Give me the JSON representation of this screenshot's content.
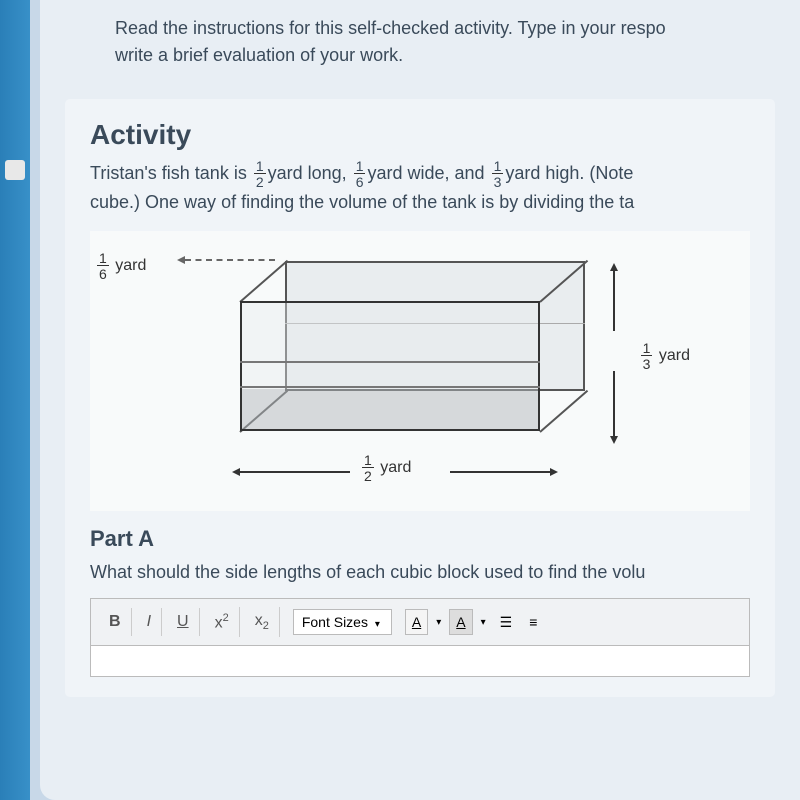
{
  "instructions": {
    "line1": "Read the instructions for this self-checked activity. Type in your respo",
    "line2": "write a brief evaluation of your work."
  },
  "activity": {
    "title": "Activity",
    "text_part1": "Tristan's fish tank is ",
    "frac1_num": "1",
    "frac1_den": "2",
    "text_part2": "yard long, ",
    "frac2_num": "1",
    "frac2_den": "6",
    "text_part3": "yard wide, and ",
    "frac3_num": "1",
    "frac3_den": "3",
    "text_part4": "yard high. (Note",
    "text_line2": "cube.) One way of finding the volume of the tank is by dividing the ta"
  },
  "diagram": {
    "width_frac_num": "1",
    "width_frac_den": "6",
    "width_unit": " yard",
    "height_frac_num": "1",
    "height_frac_den": "3",
    "height_unit": " yard",
    "length_frac_num": "1",
    "length_frac_den": "2",
    "length_unit": " yard"
  },
  "part_a": {
    "title": "Part A",
    "question": "What should the side lengths of each cubic block used to find the volu"
  },
  "toolbar": {
    "bold": "B",
    "italic": "I",
    "underline": "U",
    "superscript_x": "x",
    "superscript_2": "2",
    "subscript_x": "x",
    "subscript_2": "2",
    "font_sizes": "Font Sizes",
    "text_color": "A",
    "bg_color": "A",
    "down_arrow": "▾"
  },
  "editor": {
    "placeholder": ""
  }
}
